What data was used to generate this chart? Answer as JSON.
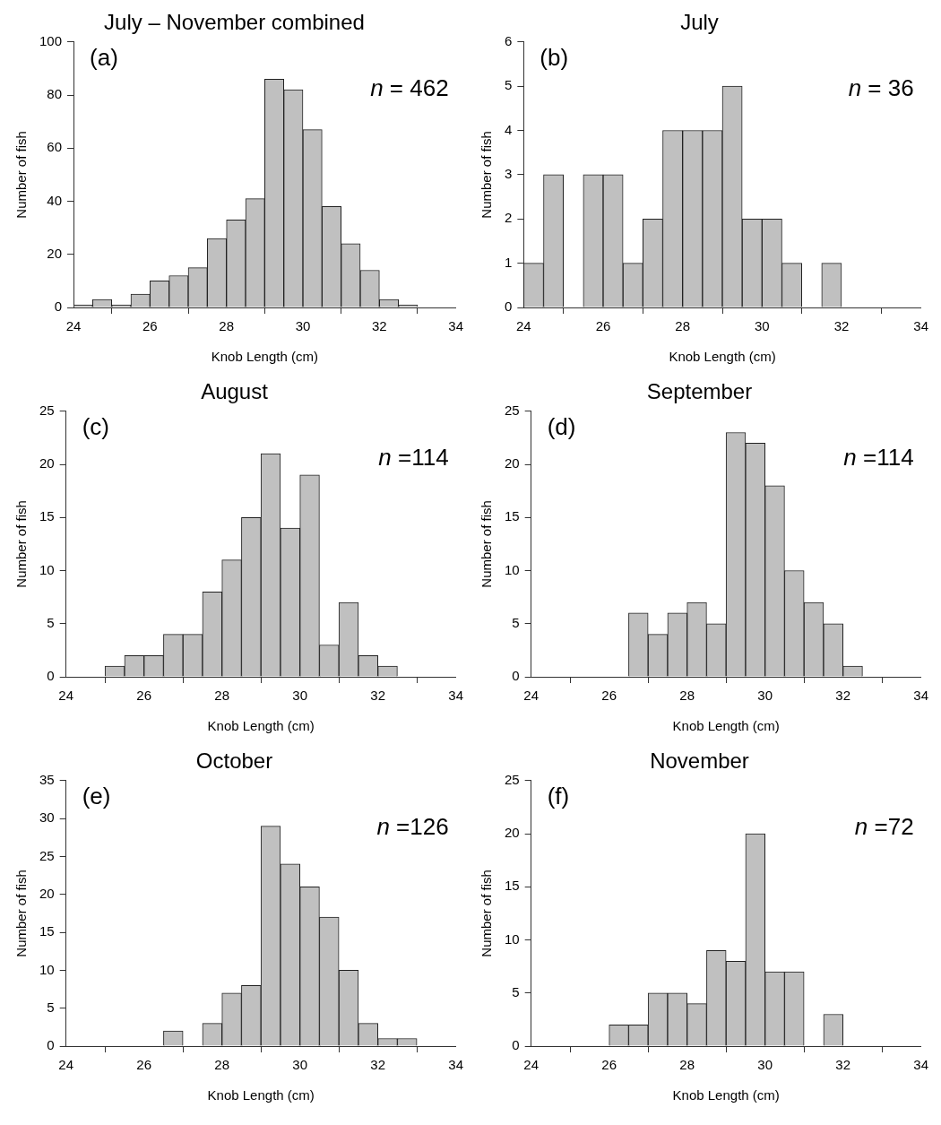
{
  "chart_data": [
    {
      "type": "histogram",
      "title": "July – November combined",
      "xlabel": "Knob Length (cm)",
      "ylabel": "Number of fish",
      "bins": [
        24,
        24.5,
        25,
        25.5,
        26,
        26.5,
        27,
        27.5,
        28,
        28.5,
        29,
        29.5,
        30,
        30.5,
        31,
        31.5,
        32,
        32.5,
        33
      ],
      "values": [
        1,
        3,
        1,
        5,
        10,
        12,
        15,
        26,
        33,
        41,
        86,
        82,
        67,
        38,
        24,
        14,
        3,
        1
      ],
      "color": "#c0c0c0",
      "xlim": [
        24,
        34
      ],
      "xticks": [
        24,
        26,
        28,
        30,
        32,
        34
      ],
      "ylim": [
        0,
        100
      ],
      "yticks": [
        0,
        20,
        40,
        60,
        80,
        100
      ],
      "annotations": [
        "(a)",
        "n = 462"
      ]
    },
    {
      "type": "histogram",
      "title": "July",
      "xlabel": "Knob Length (cm)",
      "ylabel": "Number of fish",
      "bins": [
        24,
        24.5,
        25,
        25.5,
        26,
        26.5,
        27,
        27.5,
        28,
        28.5,
        29,
        29.5,
        30,
        30.5,
        31,
        31.5,
        32
      ],
      "values": [
        1,
        3,
        0,
        3,
        3,
        1,
        2,
        4,
        4,
        4,
        5,
        2,
        2,
        1,
        0,
        1
      ],
      "color": "#c0c0c0",
      "xlim": [
        24,
        34
      ],
      "xticks": [
        24,
        26,
        28,
        30,
        32,
        34
      ],
      "ylim": [
        0,
        6
      ],
      "yticks": [
        0,
        1,
        2,
        3,
        4,
        5,
        6
      ],
      "annotations": [
        "(b)",
        "n = 36"
      ]
    },
    {
      "type": "histogram",
      "title": "August",
      "xlabel": "Knob Length (cm)",
      "ylabel": "Number of fish",
      "bins": [
        25,
        25.5,
        26,
        26.5,
        27,
        27.5,
        28,
        28.5,
        29,
        29.5,
        30,
        30.5,
        31,
        31.5,
        32,
        32.5
      ],
      "values": [
        1,
        2,
        2,
        4,
        4,
        8,
        11,
        15,
        21,
        14,
        19,
        3,
        7,
        2,
        1
      ],
      "color": "#c0c0c0",
      "xlim": [
        24,
        34
      ],
      "xticks": [
        24,
        26,
        28,
        30,
        32,
        34
      ],
      "ylim": [
        0,
        25
      ],
      "yticks": [
        0,
        5,
        10,
        15,
        20,
        25
      ],
      "annotations": [
        "(c)",
        "n =114"
      ]
    },
    {
      "type": "histogram",
      "title": "September",
      "xlabel": "Knob Length (cm)",
      "ylabel": "Number of fish",
      "bins": [
        26.5,
        27,
        27.5,
        28,
        28.5,
        29,
        29.5,
        30,
        30.5,
        31,
        31.5,
        32,
        32.5
      ],
      "values": [
        6,
        4,
        6,
        7,
        5,
        23,
        22,
        18,
        10,
        7,
        5,
        1
      ],
      "color": "#c0c0c0",
      "xlim": [
        24,
        34
      ],
      "xticks": [
        24,
        26,
        28,
        30,
        32,
        34
      ],
      "ylim": [
        0,
        25
      ],
      "yticks": [
        0,
        5,
        10,
        15,
        20,
        25
      ],
      "annotations": [
        "(d)",
        "n =114"
      ]
    },
    {
      "type": "histogram",
      "title": "October",
      "xlabel": "Knob Length (cm)",
      "ylabel": "Number of fish",
      "bins": [
        26.5,
        27,
        27.5,
        28,
        28.5,
        29,
        29.5,
        30,
        30.5,
        31,
        31.5,
        32,
        32.5,
        33
      ],
      "values": [
        2,
        0,
        3,
        7,
        8,
        29,
        24,
        21,
        17,
        10,
        3,
        1,
        1
      ],
      "color": "#c0c0c0",
      "xlim": [
        24,
        34
      ],
      "xticks": [
        24,
        26,
        28,
        30,
        32,
        34
      ],
      "ylim": [
        0,
        35
      ],
      "yticks": [
        0,
        5,
        10,
        15,
        20,
        25,
        30,
        35
      ],
      "annotations": [
        "(e)",
        "n =126"
      ]
    },
    {
      "type": "histogram",
      "title": "November",
      "xlabel": "Knob Length (cm)",
      "ylabel": "Number of fish",
      "bins": [
        26,
        26.5,
        27,
        27.5,
        28,
        28.5,
        29,
        29.5,
        30,
        30.5,
        31,
        31.5,
        32
      ],
      "values": [
        2,
        2,
        5,
        5,
        4,
        9,
        8,
        20,
        7,
        7,
        0,
        3
      ],
      "color": "#c0c0c0",
      "xlim": [
        24,
        34
      ],
      "xticks": [
        24,
        26,
        28,
        30,
        32,
        34
      ],
      "ylim": [
        0,
        25
      ],
      "yticks": [
        0,
        5,
        10,
        15,
        20,
        25
      ],
      "annotations": [
        "(f)",
        "n =72"
      ]
    }
  ]
}
